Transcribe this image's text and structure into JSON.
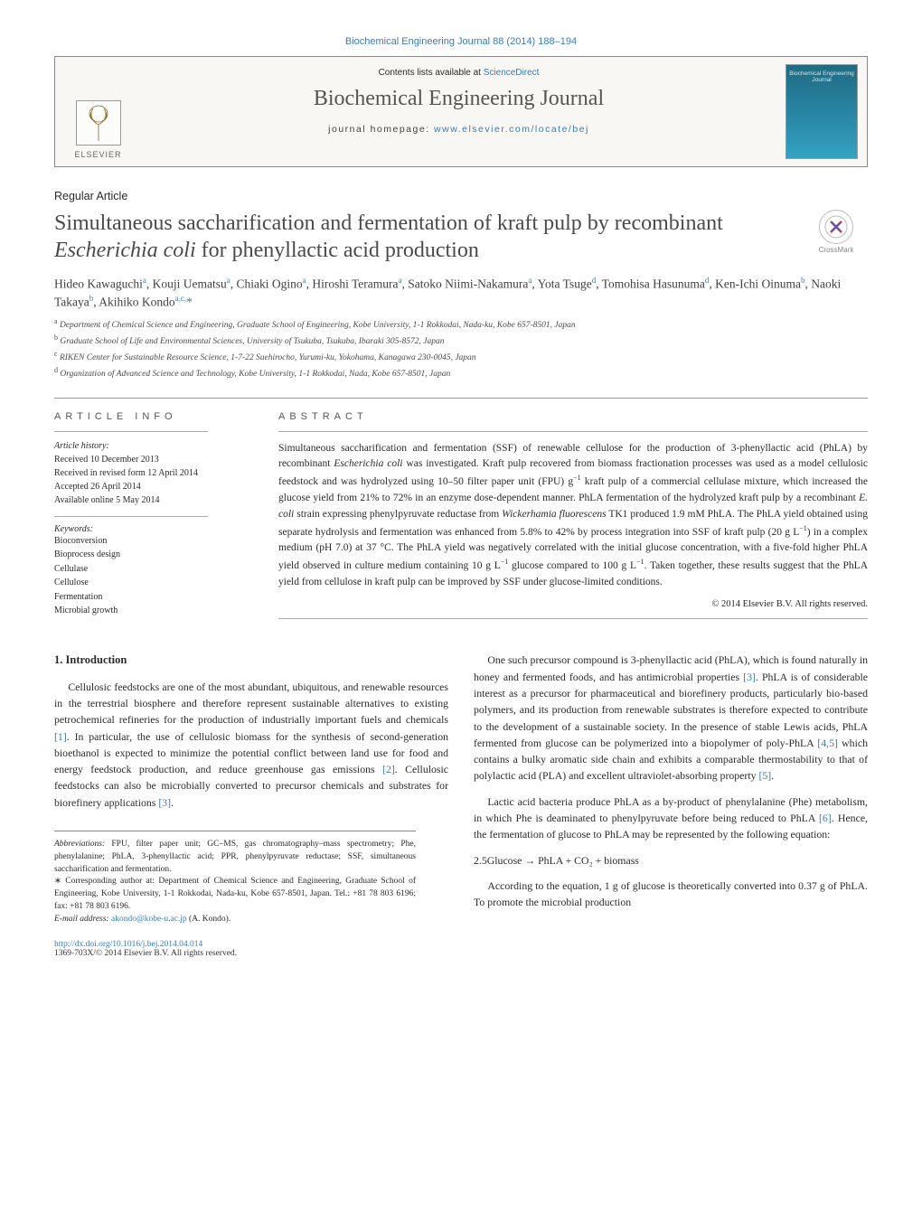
{
  "header": {
    "journal_ref": "Biochemical Engineering Journal 88 (2014) 188–194",
    "contents_prefix": "Contents lists available at ",
    "contents_link": "ScienceDirect",
    "journal_title": "Biochemical Engineering Journal",
    "homepage_prefix": "journal homepage: ",
    "homepage_link": "www.elsevier.com/locate/bej",
    "elsevier": "ELSEVIER",
    "cover_label": "Biochemical Engineering Journal"
  },
  "crossmark": {
    "label": "CrossMark"
  },
  "article": {
    "type": "Regular Article",
    "title_a": "Simultaneous saccharification and fermentation of kraft pulp by recombinant ",
    "title_italic": "Escherichia coli",
    "title_b": " for phenyllactic acid production",
    "authors_html": "Hideo Kawaguchi<sup>a</sup>, Kouji Uematsu<sup>a</sup>, Chiaki Ogino<sup>a</sup>, Hiroshi Teramura<sup>a</sup>, Satoko Niimi-Nakamura<sup>a</sup>, Yota Tsuge<sup>d</sup>, Tomohisa Hasunuma<sup>d</sup>, Ken-Ichi Oinuma<sup>b</sup>, Naoki Takaya<sup>b</sup>, Akihiko Kondo<sup>a,c,</sup><span class=\"corr\">*</span>",
    "affiliations": [
      "a Department of Chemical Science and Engineering, Graduate School of Engineering, Kobe University, 1-1 Rokkodai, Nada-ku, Kobe 657-8501, Japan",
      "b Graduate School of Life and Environmental Sciences, University of Tsukuba, Tsukuba, Ibaraki 305-8572, Japan",
      "c RIKEN Center for Sustainable Resource Science, 1-7-22 Suehirocho, Yurumi-ku, Yokohama, Kanagawa 230-0045, Japan",
      "d Organization of Advanced Science and Technology, Kobe University, 1-1 Rokkodai, Nada, Kobe 657-8501, Japan"
    ]
  },
  "info": {
    "section": "ARTICLE INFO",
    "history_hdr": "Article history:",
    "history": [
      "Received 10 December 2013",
      "Received in revised form 12 April 2014",
      "Accepted 26 April 2014",
      "Available online 5 May 2014"
    ],
    "keywords_hdr": "Keywords:",
    "keywords": [
      "Bioconversion",
      "Bioprocess design",
      "Cellulase",
      "Cellulose",
      "Fermentation",
      "Microbial growth"
    ]
  },
  "abstract": {
    "section": "ABSTRACT",
    "text": "Simultaneous saccharification and fermentation (SSF) of renewable cellulose for the production of 3-phenyllactic acid (PhLA) by recombinant <span class=\"italic\">Escherichia coli</span> was investigated. Kraft pulp recovered from biomass fractionation processes was used as a model cellulosic feedstock and was hydrolyzed using 10–50 filter paper unit (FPU) g<sup>−1</sup> kraft pulp of a commercial cellulase mixture, which increased the glucose yield from 21% to 72% in an enzyme dose-dependent manner. PhLA fermentation of the hydrolyzed kraft pulp by a recombinant <span class=\"italic\">E. coli</span> strain expressing phenylpyruvate reductase from <span class=\"italic\">Wickerhamia fluorescens</span> TK1 produced 1.9 mM PhLA. The PhLA yield obtained using separate hydrolysis and fermentation was enhanced from 5.8% to 42% by process integration into SSF of kraft pulp (20 g L<sup>−1</sup>) in a complex medium (pH 7.0) at 37 °C. The PhLA yield was negatively correlated with the initial glucose concentration, with a five-fold higher PhLA yield observed in culture medium containing 10 g L<sup>−1</sup> glucose compared to 100 g L<sup>−1</sup>. Taken together, these results suggest that the PhLA yield from cellulose in kraft pulp can be improved by SSF under glucose-limited conditions.",
    "copyright": "© 2014 Elsevier B.V. All rights reserved."
  },
  "body": {
    "heading": "1. Introduction",
    "p1": "Cellulosic feedstocks are one of the most abundant, ubiquitous, and renewable resources in the terrestrial biosphere and therefore represent sustainable alternatives to existing petrochemical refineries for the production of industrially important fuels and chemicals <span class=\"ref-link\">[1]</span>. In particular, the use of cellulosic biomass for the synthesis of second-generation bioethanol is expected to minimize the potential conflict between land use for food and energy feedstock production, and reduce greenhouse gas emissions <span class=\"ref-link\">[2]</span>. Cellulosic feedstocks can also be microbially converted to precursor chemicals and substrates for biorefinery applications <span class=\"ref-link\">[3]</span>.",
    "p2": "One such precursor compound is 3-phenyllactic acid (PhLA), which is found naturally in honey and fermented foods, and has antimicrobial properties <span class=\"ref-link\">[3]</span>. PhLA is of considerable interest as a precursor for pharmaceutical and biorefinery products, particularly bio-based polymers, and its production from renewable substrates is therefore expected to contribute to the development of a sustainable society. In the presence of stable Lewis acids, PhLA fermented from glucose can be polymerized into a biopolymer of poly-PhLA <span class=\"ref-link\">[4,5]</span> which contains a bulky aromatic side chain and exhibits a comparable thermostability to that of polylactic acid (PLA) and excellent ultraviolet-absorbing property <span class=\"ref-link\">[5]</span>.",
    "p3": "Lactic acid bacteria produce PhLA as a by-product of phenylalanine (Phe) metabolism, in which Phe is deaminated to phenylpyruvate before being reduced to PhLA <span class=\"ref-link\">[6]</span>. Hence, the fermentation of glucose to PhLA may be represented by the following equation:",
    "equation": "2.5Glucose → PhLA + CO₂ + biomass",
    "p4": "According to the equation, 1 g of glucose is theoretically converted into 0.37 g of PhLA. To promote the microbial production"
  },
  "footnotes": {
    "abbrev_label": "Abbreviations:",
    "abbrev": " FPU, filter paper unit; GC–MS, gas chromatography–mass spectrometry; Phe, phenylalanine; PhLA, 3-phenyllactic acid; PPR, phenylpyruvate reductase; SSF, simultaneous saccharification and fermentation.",
    "corr_label": "∗ Corresponding author at:",
    "corr": " Department of Chemical Science and Engineering, Graduate School of Engineering, Kobe University, 1-1 Rokkodai, Nada-ku, Kobe 657-8501, Japan. Tel.: +81 78 803 6196; fax: +81 78 803 6196.",
    "email_label": "E-mail address: ",
    "email": "akondo@kobe-u.ac.jp",
    "email_suffix": " (A. Kondo)."
  },
  "footer": {
    "doi": "http://dx.doi.org/10.1016/j.bej.2014.04.014",
    "copyright": "1369-703X/© 2014 Elsevier B.V. All rights reserved."
  },
  "colors": {
    "link": "#3a7bb5",
    "text": "#2a2a2a",
    "border": "#888888"
  }
}
